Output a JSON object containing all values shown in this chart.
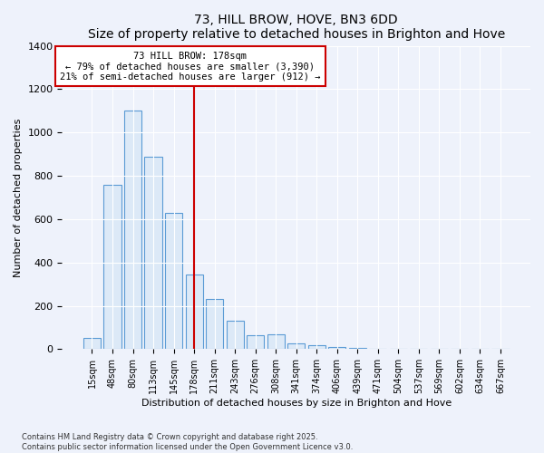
{
  "title": "73, HILL BROW, HOVE, BN3 6DD",
  "subtitle": "Size of property relative to detached houses in Brighton and Hove",
  "xlabel": "Distribution of detached houses by size in Brighton and Hove",
  "ylabel": "Number of detached properties",
  "bar_labels": [
    "15sqm",
    "48sqm",
    "80sqm",
    "113sqm",
    "145sqm",
    "178sqm",
    "211sqm",
    "243sqm",
    "276sqm",
    "308sqm",
    "341sqm",
    "374sqm",
    "406sqm",
    "439sqm",
    "471sqm",
    "504sqm",
    "537sqm",
    "569sqm",
    "602sqm",
    "634sqm",
    "667sqm"
  ],
  "bar_values": [
    50,
    760,
    1100,
    890,
    630,
    345,
    233,
    133,
    65,
    70,
    28,
    18,
    10,
    5,
    2,
    1,
    0,
    0,
    0,
    0,
    0
  ],
  "bar_color": "#dce9f7",
  "bar_edge_color": "#5b9bd5",
  "vline_x_index": 5,
  "vline_color": "#cc0000",
  "annotation_title": "73 HILL BROW: 178sqm",
  "annotation_line1": "← 79% of detached houses are smaller (3,390)",
  "annotation_line2": "21% of semi-detached houses are larger (912) →",
  "annotation_box_color": "#cc0000",
  "ylim": [
    0,
    1400
  ],
  "yticks": [
    0,
    200,
    400,
    600,
    800,
    1000,
    1200,
    1400
  ],
  "footer_line1": "Contains HM Land Registry data © Crown copyright and database right 2025.",
  "footer_line2": "Contains public sector information licensed under the Open Government Licence v3.0.",
  "bg_color": "#eef2fb"
}
